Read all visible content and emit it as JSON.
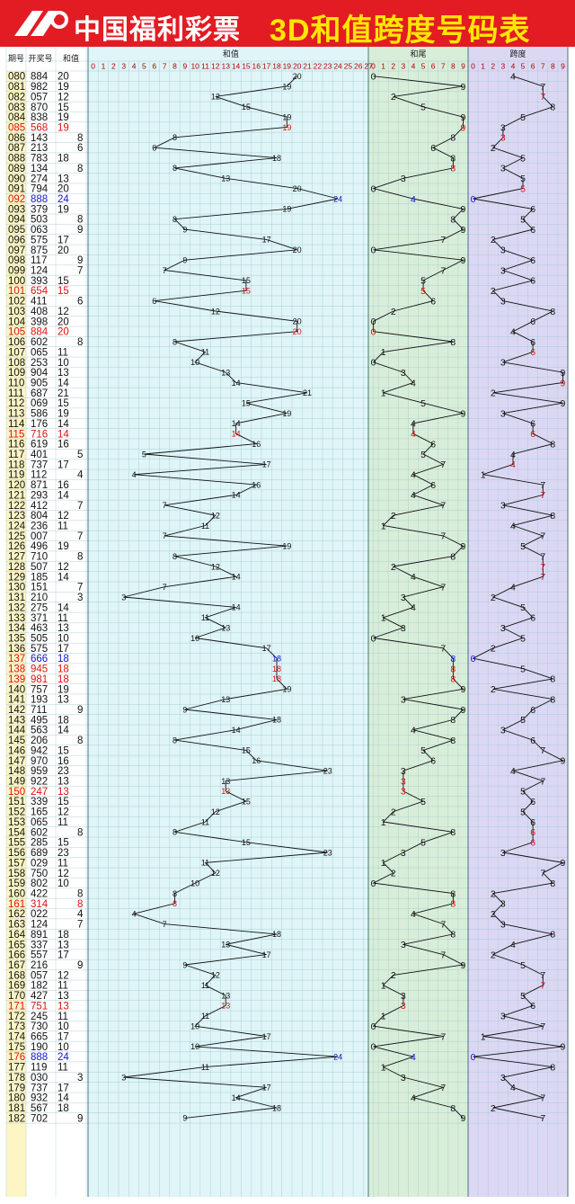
{
  "header": {
    "brand": "中国福利彩票",
    "title": "3D和值跨度号码表"
  },
  "columns": {
    "period": "期号",
    "number": "开奖号",
    "sum": "和值",
    "sum_section": "和值",
    "tail_section": "和尾",
    "span_section": "跨度"
  },
  "colors": {
    "header_bg": "#e31b23",
    "title": "#ffe600",
    "period_bg": "#fdf5c4",
    "sum_bg": "#dff5f7",
    "tail_bg": "#d9eed9",
    "span_bg": "#dcd8f4",
    "highlight_red": "#dd1111",
    "highlight_blue": "#1515c8",
    "grid": "#9fc8d0"
  },
  "chart_data": {
    "type": "line",
    "title": "3D和值跨度号码表",
    "series": [
      {
        "name": "和值",
        "range": [
          0,
          27
        ]
      },
      {
        "name": "和尾",
        "range": [
          0,
          9
        ]
      },
      {
        "name": "跨度",
        "range": [
          0,
          9
        ]
      }
    ],
    "rows": [
      {
        "period": "080",
        "number": "884",
        "sum": 20
      },
      {
        "period": "081",
        "number": "982",
        "sum": 19
      },
      {
        "period": "082",
        "number": "057",
        "sum": 12
      },
      {
        "period": "083",
        "number": "870",
        "sum": 15
      },
      {
        "period": "084",
        "number": "838",
        "sum": 19
      },
      {
        "period": "085",
        "number": "568",
        "sum": 19
      },
      {
        "period": "086",
        "number": "143",
        "sum": 8
      },
      {
        "period": "087",
        "number": "213",
        "sum": 6
      },
      {
        "period": "088",
        "number": "783",
        "sum": 18
      },
      {
        "period": "089",
        "number": "134",
        "sum": 8
      },
      {
        "period": "090",
        "number": "274",
        "sum": 13
      },
      {
        "period": "091",
        "number": "794",
        "sum": 20
      },
      {
        "period": "092",
        "number": "888",
        "sum": 24
      },
      {
        "period": "093",
        "number": "379",
        "sum": 19
      },
      {
        "period": "094",
        "number": "503",
        "sum": 8
      },
      {
        "period": "095",
        "number": "063",
        "sum": 9
      },
      {
        "period": "096",
        "number": "575",
        "sum": 17
      },
      {
        "period": "097",
        "number": "875",
        "sum": 20
      },
      {
        "period": "098",
        "number": "117",
        "sum": 9
      },
      {
        "period": "099",
        "number": "124",
        "sum": 7
      },
      {
        "period": "100",
        "number": "393",
        "sum": 15
      },
      {
        "period": "101",
        "number": "654",
        "sum": 15
      },
      {
        "period": "102",
        "number": "411",
        "sum": 6
      },
      {
        "period": "103",
        "number": "408",
        "sum": 12
      },
      {
        "period": "104",
        "number": "398",
        "sum": 20
      },
      {
        "period": "105",
        "number": "884",
        "sum": 20
      },
      {
        "period": "106",
        "number": "602",
        "sum": 8
      },
      {
        "period": "107",
        "number": "065",
        "sum": 11
      },
      {
        "period": "108",
        "number": "253",
        "sum": 10
      },
      {
        "period": "109",
        "number": "904",
        "sum": 13
      },
      {
        "period": "110",
        "number": "905",
        "sum": 14
      },
      {
        "period": "111",
        "number": "687",
        "sum": 21
      },
      {
        "period": "112",
        "number": "069",
        "sum": 15
      },
      {
        "period": "113",
        "number": "586",
        "sum": 19
      },
      {
        "period": "114",
        "number": "176",
        "sum": 14
      },
      {
        "period": "115",
        "number": "716",
        "sum": 14
      },
      {
        "period": "116",
        "number": "619",
        "sum": 16
      },
      {
        "period": "117",
        "number": "401",
        "sum": 5
      },
      {
        "period": "118",
        "number": "737",
        "sum": 17
      },
      {
        "period": "119",
        "number": "112",
        "sum": 4
      },
      {
        "period": "120",
        "number": "871",
        "sum": 16
      },
      {
        "period": "121",
        "number": "293",
        "sum": 14
      },
      {
        "period": "122",
        "number": "412",
        "sum": 7
      },
      {
        "period": "123",
        "number": "804",
        "sum": 12
      },
      {
        "period": "124",
        "number": "236",
        "sum": 11
      },
      {
        "period": "125",
        "number": "007",
        "sum": 7
      },
      {
        "period": "126",
        "number": "496",
        "sum": 19
      },
      {
        "period": "127",
        "number": "710",
        "sum": 8
      },
      {
        "period": "128",
        "number": "507",
        "sum": 12
      },
      {
        "period": "129",
        "number": "185",
        "sum": 14
      },
      {
        "period": "130",
        "number": "151",
        "sum": 7
      },
      {
        "period": "131",
        "number": "210",
        "sum": 3
      },
      {
        "period": "132",
        "number": "275",
        "sum": 14
      },
      {
        "period": "133",
        "number": "371",
        "sum": 11
      },
      {
        "period": "134",
        "number": "463",
        "sum": 13
      },
      {
        "period": "135",
        "number": "505",
        "sum": 10
      },
      {
        "period": "136",
        "number": "575",
        "sum": 17
      },
      {
        "period": "137",
        "number": "666",
        "sum": 18
      },
      {
        "period": "138",
        "number": "945",
        "sum": 18
      },
      {
        "period": "139",
        "number": "981",
        "sum": 18
      },
      {
        "period": "140",
        "number": "757",
        "sum": 19
      },
      {
        "period": "141",
        "number": "193",
        "sum": 13
      },
      {
        "period": "142",
        "number": "711",
        "sum": 9
      },
      {
        "period": "143",
        "number": "495",
        "sum": 18
      },
      {
        "period": "144",
        "number": "563",
        "sum": 14
      },
      {
        "period": "145",
        "number": "206",
        "sum": 8
      },
      {
        "period": "146",
        "number": "942",
        "sum": 15
      },
      {
        "period": "147",
        "number": "970",
        "sum": 16
      },
      {
        "period": "148",
        "number": "959",
        "sum": 23
      },
      {
        "period": "149",
        "number": "922",
        "sum": 13
      },
      {
        "period": "150",
        "number": "247",
        "sum": 13
      },
      {
        "period": "151",
        "number": "339",
        "sum": 15
      },
      {
        "period": "152",
        "number": "165",
        "sum": 12
      },
      {
        "period": "153",
        "number": "065",
        "sum": 11
      },
      {
        "period": "154",
        "number": "602",
        "sum": 8
      },
      {
        "period": "155",
        "number": "285",
        "sum": 15
      },
      {
        "period": "156",
        "number": "689",
        "sum": 23
      },
      {
        "period": "157",
        "number": "029",
        "sum": 11
      },
      {
        "period": "158",
        "number": "750",
        "sum": 12
      },
      {
        "period": "159",
        "number": "802",
        "sum": 10
      },
      {
        "period": "160",
        "number": "422",
        "sum": 8
      },
      {
        "period": "161",
        "number": "314",
        "sum": 8
      },
      {
        "period": "162",
        "number": "022",
        "sum": 4
      },
      {
        "period": "163",
        "number": "124",
        "sum": 7
      },
      {
        "period": "164",
        "number": "891",
        "sum": 18
      },
      {
        "period": "165",
        "number": "337",
        "sum": 13
      },
      {
        "period": "166",
        "number": "557",
        "sum": 17
      },
      {
        "period": "167",
        "number": "216",
        "sum": 9
      },
      {
        "period": "168",
        "number": "057",
        "sum": 12
      },
      {
        "period": "169",
        "number": "182",
        "sum": 11
      },
      {
        "period": "170",
        "number": "427",
        "sum": 13
      },
      {
        "period": "171",
        "number": "751",
        "sum": 13
      },
      {
        "period": "172",
        "number": "245",
        "sum": 11
      },
      {
        "period": "173",
        "number": "730",
        "sum": 10
      },
      {
        "period": "174",
        "number": "665",
        "sum": 17
      },
      {
        "period": "175",
        "number": "190",
        "sum": 10
      },
      {
        "period": "176",
        "number": "888",
        "sum": 24
      },
      {
        "period": "177",
        "number": "119",
        "sum": 11
      },
      {
        "period": "178",
        "number": "030",
        "sum": 3
      },
      {
        "period": "179",
        "number": "737",
        "sum": 17
      },
      {
        "period": "180",
        "number": "932",
        "sum": 14
      },
      {
        "period": "181",
        "number": "567",
        "sum": 18
      },
      {
        "period": "182",
        "number": "702",
        "sum": 9
      }
    ]
  }
}
